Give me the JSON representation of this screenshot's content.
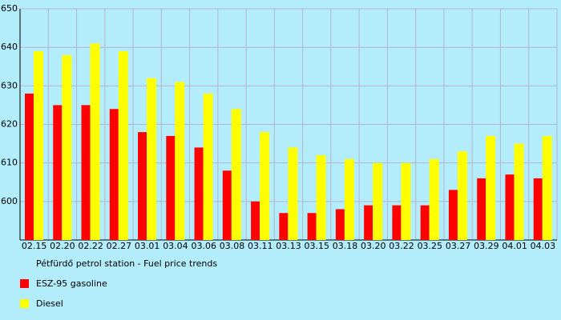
{
  "chart_data": {
    "type": "bar",
    "title": "Pétfürdő petrol station - Fuel price trends",
    "categories": [
      "02.15",
      "02.20",
      "02.22",
      "02.27",
      "03.01",
      "03.04",
      "03.06",
      "03.08",
      "03.11",
      "03.13",
      "03.15",
      "03.18",
      "03.20",
      "03.22",
      "03.25",
      "03.27",
      "03.29",
      "04.01",
      "04.03"
    ],
    "series": [
      {
        "name": "ESZ-95 gasoline",
        "color": "#ff0000",
        "values": [
          628,
          625,
          625,
          624,
          618,
          617,
          614,
          608,
          600,
          597,
          597,
          598,
          599,
          599,
          599,
          603,
          606,
          607,
          606
        ]
      },
      {
        "name": "Diesel",
        "color": "#ffff00",
        "values": [
          639,
          638,
          641,
          639,
          632,
          631,
          628,
          624,
          618,
          614,
          612,
          611,
          610,
          610,
          611,
          613,
          617,
          615,
          617
        ]
      }
    ],
    "ylim": [
      590,
      650
    ],
    "yticks": [
      600,
      610,
      620,
      630,
      640,
      650
    ],
    "grid": true
  }
}
